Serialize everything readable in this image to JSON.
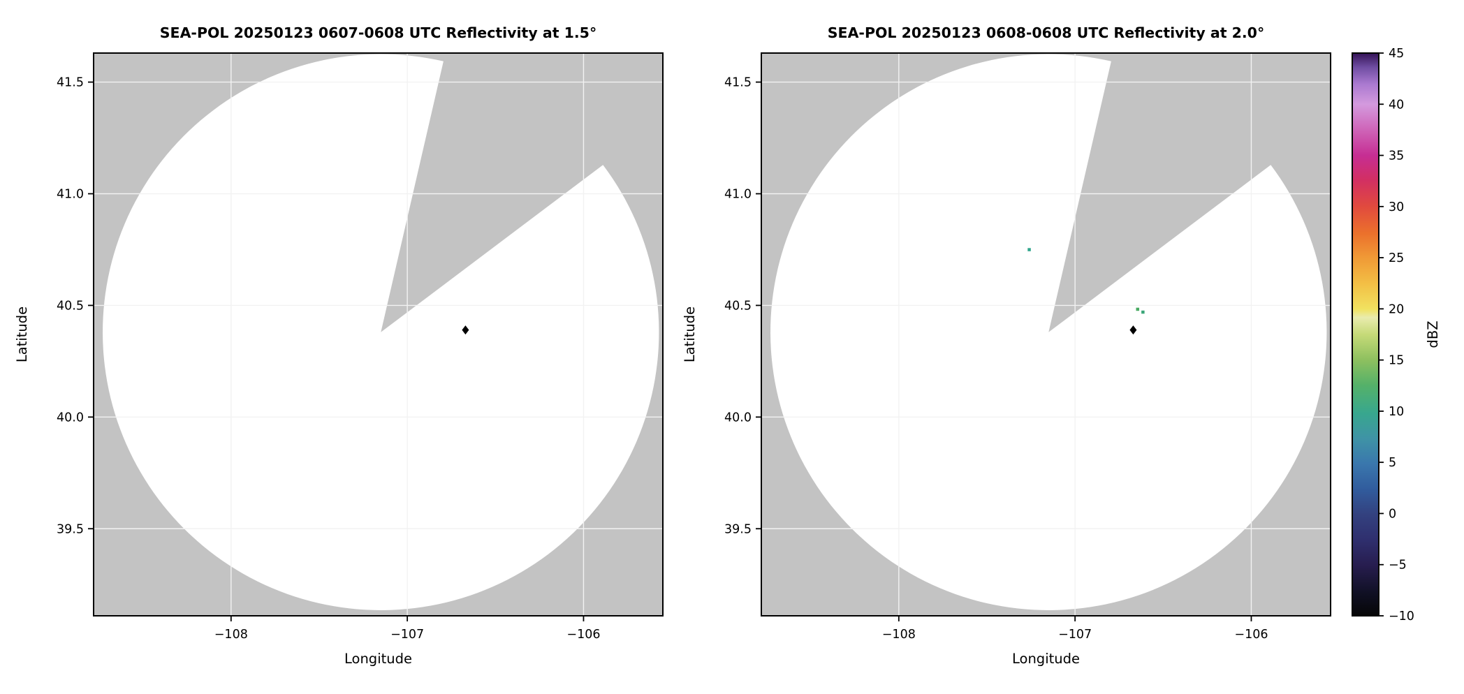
{
  "figure": {
    "description": "Two side-by-side SEA-POL radar PPI reflectivity panels with shared dBZ colorbar",
    "background": "#ffffff"
  },
  "colors": {
    "nodata_gray": "#c3c3c3",
    "coverage_white": "#ffffff",
    "grid": "#f2f2f2",
    "spine": "#000000",
    "text": "#000000"
  },
  "colorbar": {
    "label": "dBZ",
    "min": -10,
    "max": 45,
    "ticks": [
      {
        "v": -10,
        "label": "−10"
      },
      {
        "v": -5,
        "label": "−5"
      },
      {
        "v": 0,
        "label": "0"
      },
      {
        "v": 5,
        "label": "5"
      },
      {
        "v": 10,
        "label": "10"
      },
      {
        "v": 15,
        "label": "15"
      },
      {
        "v": 20,
        "label": "20"
      },
      {
        "v": 25,
        "label": "25"
      },
      {
        "v": 30,
        "label": "30"
      },
      {
        "v": 35,
        "label": "35"
      },
      {
        "v": 40,
        "label": "40"
      },
      {
        "v": 45,
        "label": "45"
      }
    ],
    "stops": [
      {
        "p": 0.0,
        "c": "#060606"
      },
      {
        "p": 0.04,
        "c": "#101024"
      },
      {
        "p": 0.09,
        "c": "#271d4f"
      },
      {
        "p": 0.135,
        "c": "#2f2f6e"
      },
      {
        "p": 0.18,
        "c": "#33417f"
      },
      {
        "p": 0.225,
        "c": "#315c9d"
      },
      {
        "p": 0.27,
        "c": "#3a77ad"
      },
      {
        "p": 0.315,
        "c": "#3f93a6"
      },
      {
        "p": 0.36,
        "c": "#38a78e"
      },
      {
        "p": 0.41,
        "c": "#55b169"
      },
      {
        "p": 0.455,
        "c": "#8ec05f"
      },
      {
        "p": 0.5,
        "c": "#c6da78"
      },
      {
        "p": 0.53,
        "c": "#e9ecae"
      },
      {
        "p": 0.545,
        "c": "#f1e260"
      },
      {
        "p": 0.59,
        "c": "#f3bf45"
      },
      {
        "p": 0.636,
        "c": "#f09a36"
      },
      {
        "p": 0.68,
        "c": "#eb702c"
      },
      {
        "p": 0.727,
        "c": "#e14a3e"
      },
      {
        "p": 0.775,
        "c": "#d22f63"
      },
      {
        "p": 0.818,
        "c": "#c62e93"
      },
      {
        "p": 0.86,
        "c": "#ce60b5"
      },
      {
        "p": 0.909,
        "c": "#d49ade"
      },
      {
        "p": 0.945,
        "c": "#aa79d0"
      },
      {
        "p": 0.975,
        "c": "#6f4da2"
      },
      {
        "p": 1.0,
        "c": "#341356"
      }
    ]
  },
  "chart_data": [
    {
      "type": "heatmap",
      "title": "SEA-POL 20250123 0607-0608 UTC Reflectivity at 1.5°",
      "xlabel": "Longitude",
      "ylabel": "Latitude",
      "xlim": [
        -108.78,
        -105.55
      ],
      "ylim": [
        39.11,
        41.63
      ],
      "grid": true,
      "xticks": [
        {
          "v": -108,
          "label": "−108"
        },
        {
          "v": -107,
          "label": "−107"
        },
        {
          "v": -106,
          "label": "−106"
        }
      ],
      "yticks": [
        {
          "v": 39.5,
          "label": "39.5"
        },
        {
          "v": 40.0,
          "label": "40.0"
        },
        {
          "v": 40.5,
          "label": "40.5"
        },
        {
          "v": 41.0,
          "label": "41.0"
        },
        {
          "v": 41.5,
          "label": "41.5"
        }
      ],
      "radar_coverage": {
        "center_lon": -107.15,
        "center_lat": 40.38,
        "radius_deg_lat": 1.245,
        "blocked_sector_azimuth_deg": [
          13,
          53
        ]
      },
      "site_marker": {
        "lon": -106.67,
        "lat": 40.39,
        "shape": "diamond",
        "color": "#000000"
      },
      "echoes": []
    },
    {
      "type": "heatmap",
      "title": "SEA-POL 20250123 0608-0608 UTC Reflectivity at 2.0°",
      "xlabel": "Longitude",
      "ylabel": "Latitude",
      "xlim": [
        -108.78,
        -105.55
      ],
      "ylim": [
        39.11,
        41.63
      ],
      "grid": true,
      "xticks": [
        {
          "v": -108,
          "label": "−108"
        },
        {
          "v": -107,
          "label": "−107"
        },
        {
          "v": -106,
          "label": "−106"
        }
      ],
      "yticks": [
        {
          "v": 39.5,
          "label": "39.5"
        },
        {
          "v": 40.0,
          "label": "40.0"
        },
        {
          "v": 40.5,
          "label": "40.5"
        },
        {
          "v": 41.0,
          "label": "41.0"
        },
        {
          "v": 41.5,
          "label": "41.5"
        }
      ],
      "radar_coverage": {
        "center_lon": -107.15,
        "center_lat": 40.38,
        "radius_deg_lat": 1.245,
        "blocked_sector_azimuth_deg": [
          13,
          53
        ]
      },
      "site_marker": {
        "lon": -106.67,
        "lat": 40.39,
        "shape": "diamond",
        "color": "#000000"
      },
      "echoes": [
        {
          "lon": -107.26,
          "lat": 40.75,
          "dbz": 9,
          "color": "#2fa58c"
        },
        {
          "lon": -106.645,
          "lat": 40.483,
          "dbz": 12,
          "color": "#4aab63"
        },
        {
          "lon": -106.615,
          "lat": 40.47,
          "dbz": 11,
          "color": "#3aa578"
        }
      ]
    }
  ]
}
